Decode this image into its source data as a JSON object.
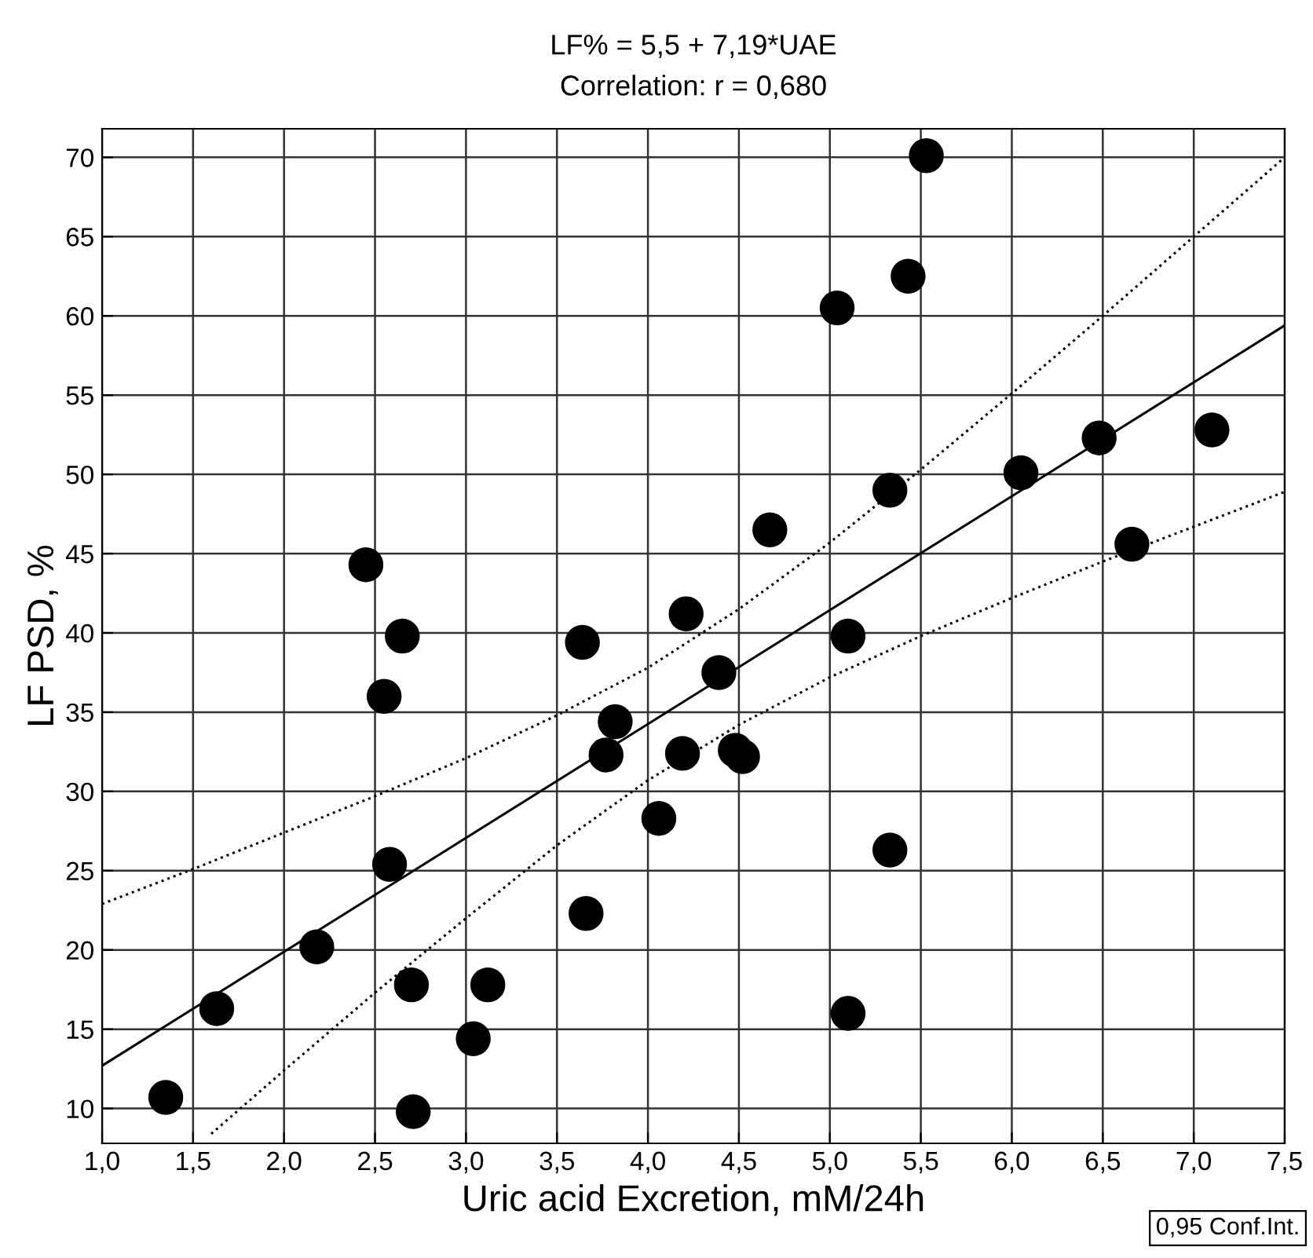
{
  "chart_data": {
    "type": "scatter",
    "title": "LF% = 5,5 + 7,19*UAE",
    "subtitle": "Correlation: r = 0,680",
    "xlabel": "Uric acid Excretion, mM/24h",
    "ylabel": "LF PSD, %",
    "annotations": [
      "0,95 Conf.Int."
    ],
    "xlim": [
      1.0,
      7.5
    ],
    "ylim": [
      7.8,
      71.8
    ],
    "xticks": [
      {
        "value": 1.0,
        "label": "1,0"
      },
      {
        "value": 1.5,
        "label": "1,5"
      },
      {
        "value": 2.0,
        "label": "2,0"
      },
      {
        "value": 2.5,
        "label": "2,5"
      },
      {
        "value": 3.0,
        "label": "3,0"
      },
      {
        "value": 3.5,
        "label": "3,5"
      },
      {
        "value": 4.0,
        "label": "4,0"
      },
      {
        "value": 4.5,
        "label": "4,5"
      },
      {
        "value": 5.0,
        "label": "5,0"
      },
      {
        "value": 5.5,
        "label": "5,5"
      },
      {
        "value": 6.0,
        "label": "6,0"
      },
      {
        "value": 6.5,
        "label": "6,5"
      },
      {
        "value": 7.0,
        "label": "7,0"
      },
      {
        "value": 7.5,
        "label": "7,5"
      }
    ],
    "yticks": [
      10,
      15,
      20,
      25,
      30,
      35,
      40,
      45,
      50,
      55,
      60,
      65,
      70
    ],
    "grid": true,
    "series": [
      {
        "color": "#000000",
        "marker": "circle",
        "x": [
          1.35,
          1.63,
          2.18,
          2.45,
          2.55,
          2.58,
          2.65,
          2.7,
          2.71,
          3.04,
          3.12,
          3.64,
          3.66,
          3.77,
          3.82,
          4.06,
          4.19,
          4.21,
          4.39,
          4.48,
          4.52,
          4.67,
          5.04,
          5.1,
          5.1,
          5.33,
          5.33,
          5.43,
          5.53,
          6.05,
          6.48,
          6.66,
          7.1
        ],
        "values": [
          10.7,
          16.3,
          20.2,
          44.3,
          36.0,
          25.4,
          39.8,
          17.8,
          9.8,
          14.4,
          17.8,
          39.4,
          22.3,
          32.3,
          34.4,
          28.3,
          32.4,
          41.2,
          37.5,
          32.6,
          32.2,
          46.5,
          60.5,
          39.8,
          16.0,
          49.0,
          26.3,
          62.5,
          70.1,
          50.1,
          52.3,
          45.6,
          52.8
        ]
      },
      {
        "type": "line",
        "color": "#000000",
        "marker": "none",
        "line_style": "solid",
        "x": [
          1.0,
          7.5
        ],
        "values": [
          12.7,
          59.4
        ]
      },
      {
        "type": "line",
        "color": "#000000",
        "marker": "none",
        "line_style": "dotted",
        "x": [
          1.0,
          1.5,
          2.0,
          2.5,
          3.0,
          3.5,
          4.0,
          4.5,
          5.0,
          5.5,
          6.0,
          6.5,
          7.0,
          7.5
        ],
        "values": [
          22.9,
          25.1,
          27.4,
          29.7,
          32.1,
          34.8,
          37.8,
          41.5,
          45.7,
          50.3,
          55.1,
          60.0,
          65.0,
          70.0
        ]
      },
      {
        "type": "line",
        "color": "#000000",
        "marker": "none",
        "line_style": "dotted",
        "x": [
          1.6,
          2.0,
          2.5,
          3.0,
          3.5,
          4.0,
          4.5,
          5.0,
          5.5,
          6.0,
          6.5,
          7.0,
          7.5
        ],
        "values": [
          8.4,
          12.4,
          17.3,
          22.0,
          26.6,
          30.7,
          34.2,
          37.2,
          39.8,
          42.2,
          44.5,
          46.7,
          48.9
        ]
      }
    ]
  }
}
